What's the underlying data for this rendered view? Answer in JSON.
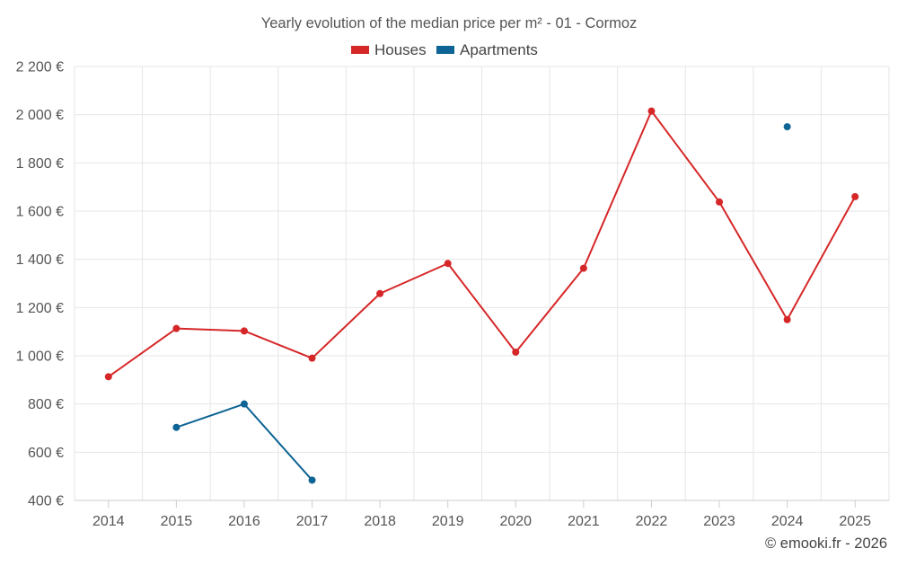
{
  "chart_data": {
    "type": "line",
    "title": "Yearly evolution of the median price per m² - 01 - Cormoz",
    "categories": [
      "2014",
      "2015",
      "2016",
      "2017",
      "2018",
      "2019",
      "2020",
      "2021",
      "2022",
      "2023",
      "2024",
      "2025"
    ],
    "series": [
      {
        "name": "Houses",
        "color": "#d62728",
        "values": [
          913,
          1113,
          1103,
          990,
          1258,
          1383,
          1015,
          1363,
          2015,
          1638,
          1150,
          1660
        ]
      },
      {
        "name": "Apartments",
        "color": "#0e6494",
        "values": [
          null,
          703,
          800,
          484,
          null,
          null,
          null,
          null,
          null,
          null,
          1950,
          null
        ]
      }
    ],
    "xlabel": "",
    "ylabel": "",
    "ylim": [
      400,
      2200
    ],
    "yticks": [
      400,
      600,
      800,
      1000,
      1200,
      1400,
      1600,
      1800,
      2000,
      2200
    ],
    "ytick_labels": [
      "400 €",
      "600 €",
      "800 €",
      "1 000 €",
      "1 200 €",
      "1 400 €",
      "1 600 €",
      "1 800 €",
      "2 000 €",
      "2 200 €"
    ],
    "grid": true,
    "legend_position": "top-center"
  },
  "footer": {
    "copyright": "© emooki.fr - 2026"
  },
  "colors": {
    "grid": "#e6e6e6",
    "axis_text": "#555555",
    "title_text": "#555555"
  }
}
